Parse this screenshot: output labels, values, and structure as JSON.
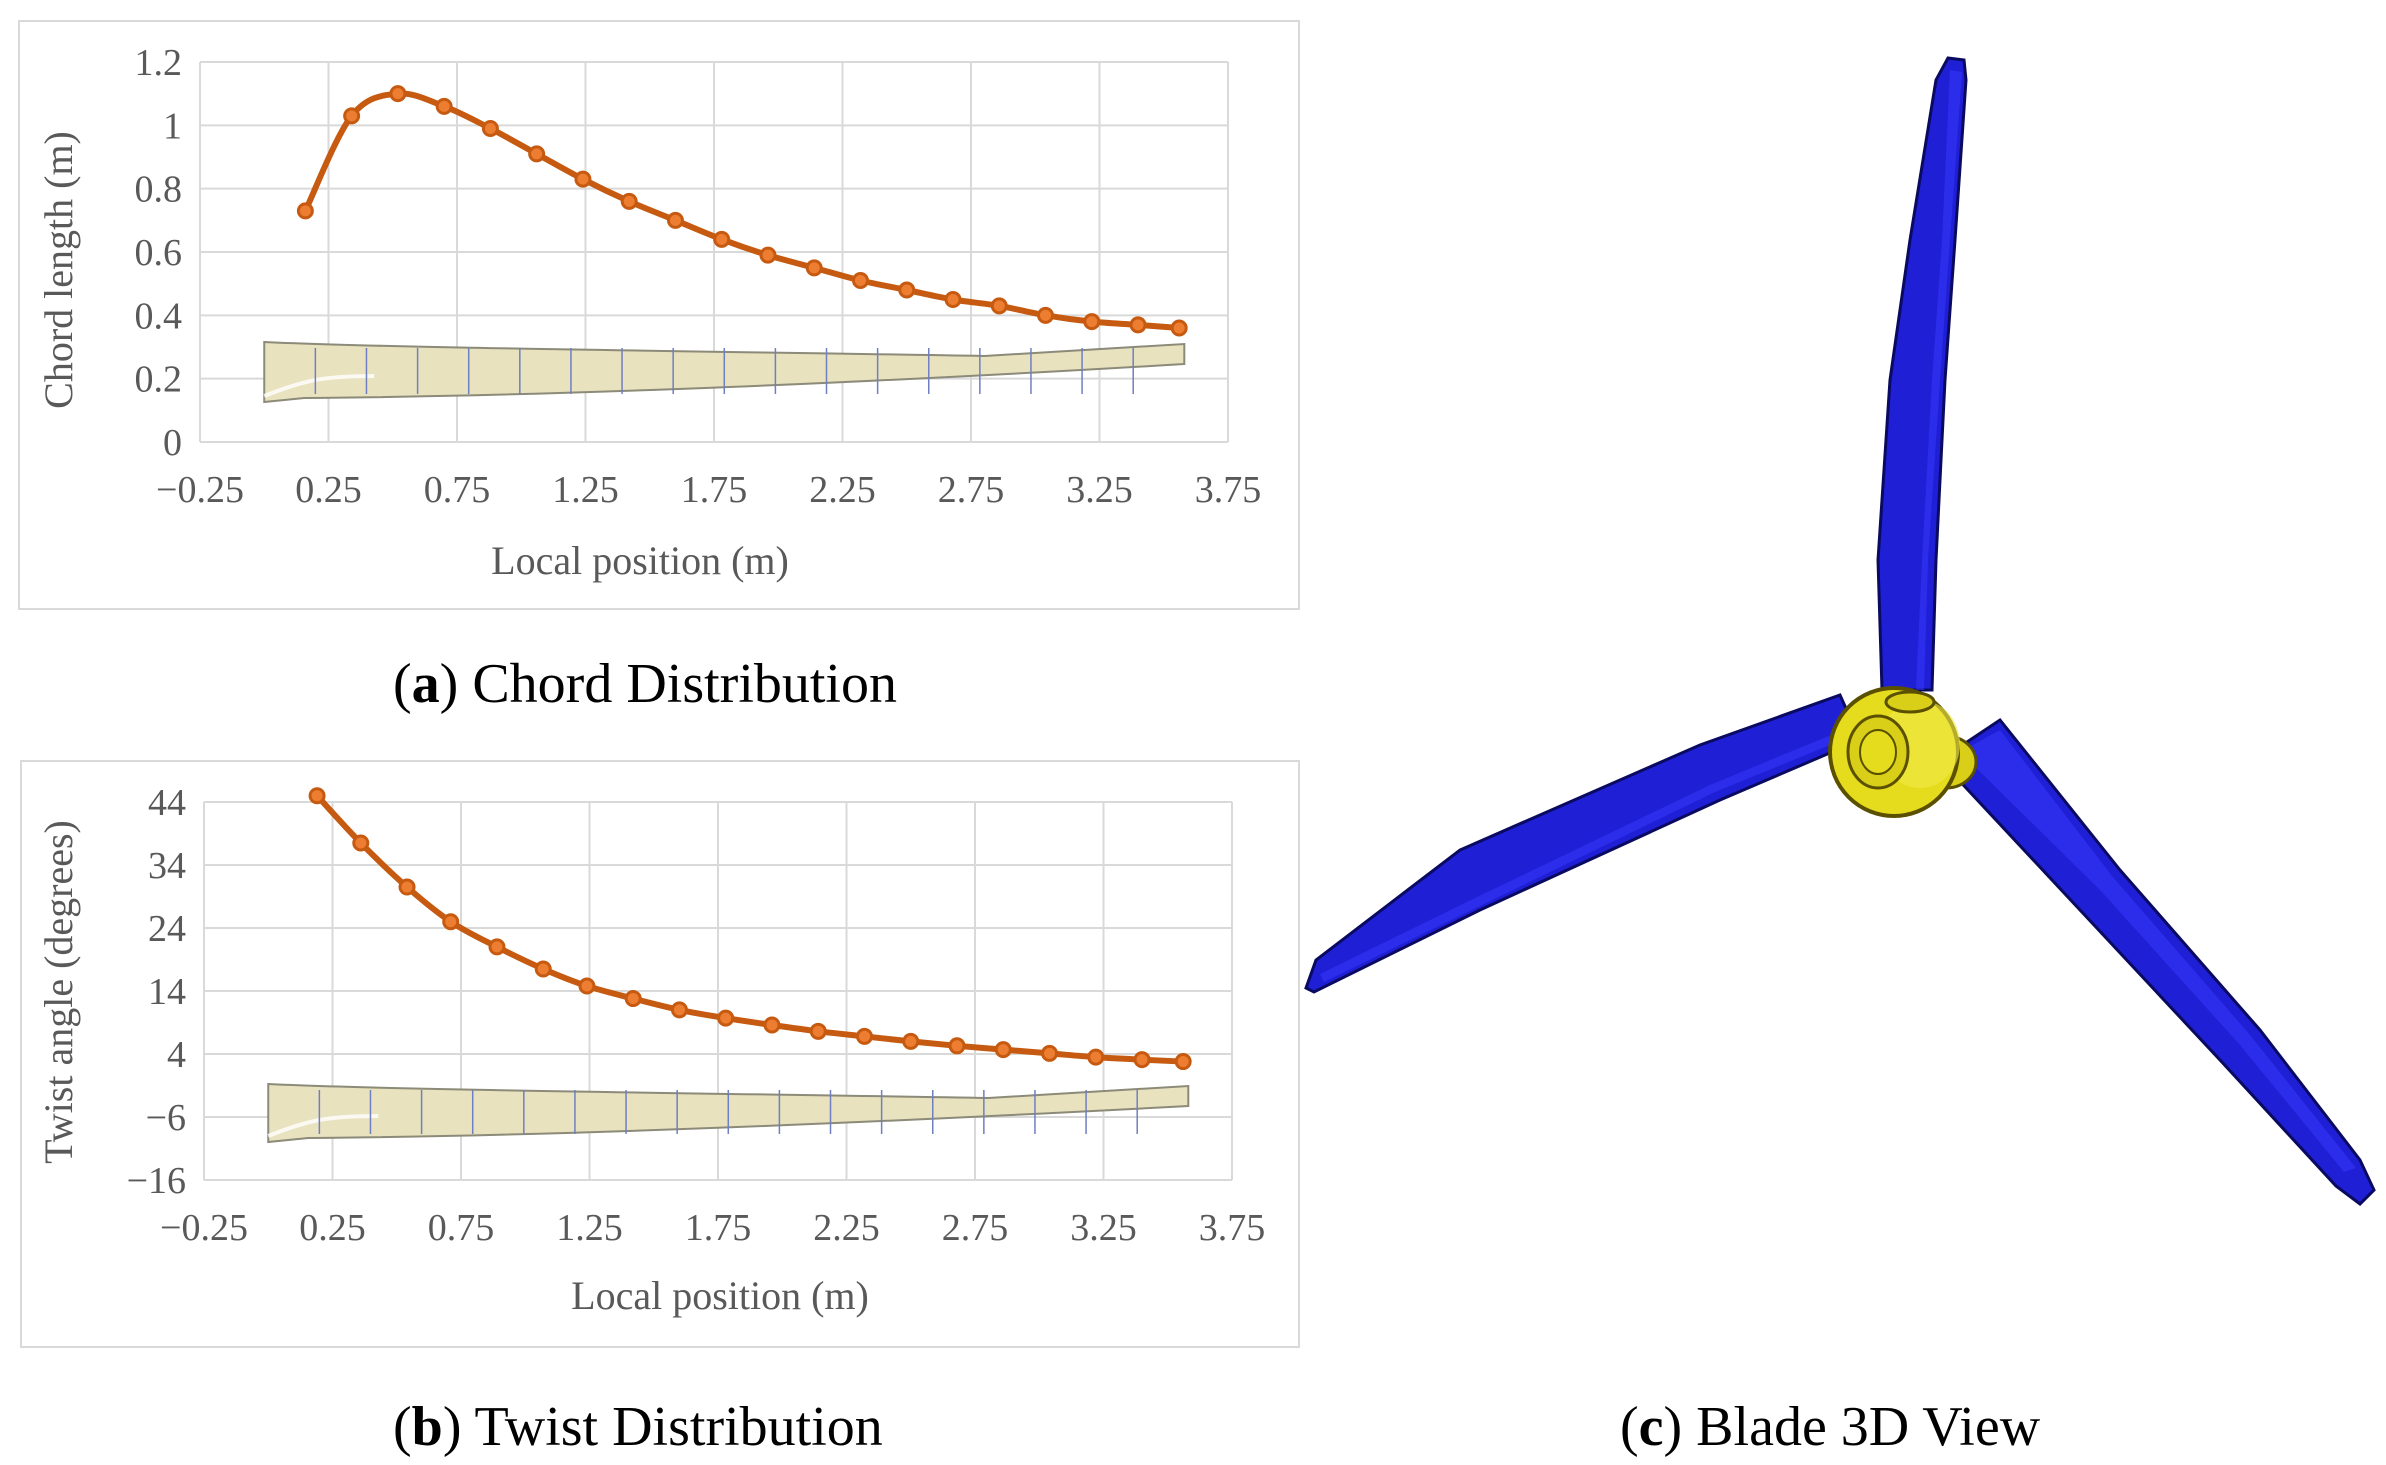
{
  "chart_data": [
    {
      "type": "line",
      "panel_label": "a",
      "caption": "Chord Distribution",
      "xlabel": "Local position (m)",
      "ylabel": "Chord length (m)",
      "xlim": [
        -0.25,
        3.75
      ],
      "ylim": [
        0,
        1.2
      ],
      "x_ticks": [
        "−0.25",
        "0.25",
        "0.75",
        "1.25",
        "1.75",
        "2.25",
        "2.75",
        "3.25",
        "3.75"
      ],
      "y_ticks": [
        "0",
        "0.2",
        "0.4",
        "0.6",
        "0.8",
        "1",
        "1.2"
      ],
      "grid": true,
      "series": [
        {
          "x": [
            0.16,
            0.34,
            0.52,
            0.7,
            0.88,
            1.06,
            1.24,
            1.42,
            1.6,
            1.78,
            1.96,
            2.14,
            2.32,
            2.5,
            2.68,
            2.86,
            3.04,
            3.22,
            3.4,
            3.56
          ],
          "values": [
            0.73,
            1.03,
            1.1,
            1.06,
            0.99,
            0.91,
            0.83,
            0.76,
            0.7,
            0.64,
            0.59,
            0.55,
            0.51,
            0.48,
            0.45,
            0.43,
            0.4,
            0.38,
            0.37,
            0.36
          ]
        }
      ]
    },
    {
      "type": "line",
      "panel_label": "b",
      "caption": "Twist Distribution",
      "xlabel": "Local position (m)",
      "ylabel": "Twist angle (degrees)",
      "xlim": [
        -0.25,
        3.75
      ],
      "ylim": [
        -16,
        44
      ],
      "x_ticks": [
        "−0.25",
        "0.25",
        "0.75",
        "1.25",
        "1.75",
        "2.25",
        "2.75",
        "3.25",
        "3.75"
      ],
      "y_ticks": [
        "−16",
        "−6",
        "4",
        "14",
        "24",
        "34",
        "44"
      ],
      "grid": true,
      "series": [
        {
          "x": [
            0.19,
            0.36,
            0.54,
            0.71,
            0.89,
            1.07,
            1.24,
            1.42,
            1.6,
            1.78,
            1.96,
            2.14,
            2.32,
            2.5,
            2.68,
            2.86,
            3.04,
            3.22,
            3.4,
            3.56
          ],
          "values": [
            45.0,
            37.5,
            30.5,
            25.0,
            21.0,
            17.5,
            14.8,
            12.8,
            11.0,
            9.7,
            8.6,
            7.6,
            6.8,
            6.0,
            5.3,
            4.7,
            4.1,
            3.5,
            3.1,
            2.8
          ]
        }
      ]
    }
  ],
  "figure_c": {
    "panel_label": "c",
    "caption": "Blade 3D View"
  },
  "colors": {
    "series_line": "#c65a11",
    "series_marker": "#ed7d31",
    "blade_profile_fill": "#e8e2bf",
    "rotor_blade": "#1f1fd6",
    "rotor_hub": "#e6dc1e"
  }
}
